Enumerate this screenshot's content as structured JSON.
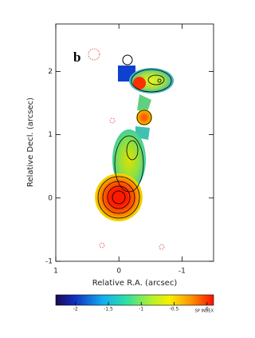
{
  "chart_data": {
    "type": "image",
    "annotation": "b",
    "xlabel": "Relative R.A. (arcsec)",
    "ylabel": "Relative Decl. (arcsec)",
    "xlim": [
      1,
      -1.5
    ],
    "ylim": [
      -1,
      2.75
    ],
    "xticks": [
      1,
      0,
      -1
    ],
    "yticks": [
      -1,
      0,
      1,
      2
    ],
    "colorbar": {
      "label": "SP INDEX",
      "lim": [
        -2.3,
        0.1
      ],
      "ticks": [
        -2,
        -1.5,
        -1,
        -0.5,
        0
      ]
    }
  }
}
